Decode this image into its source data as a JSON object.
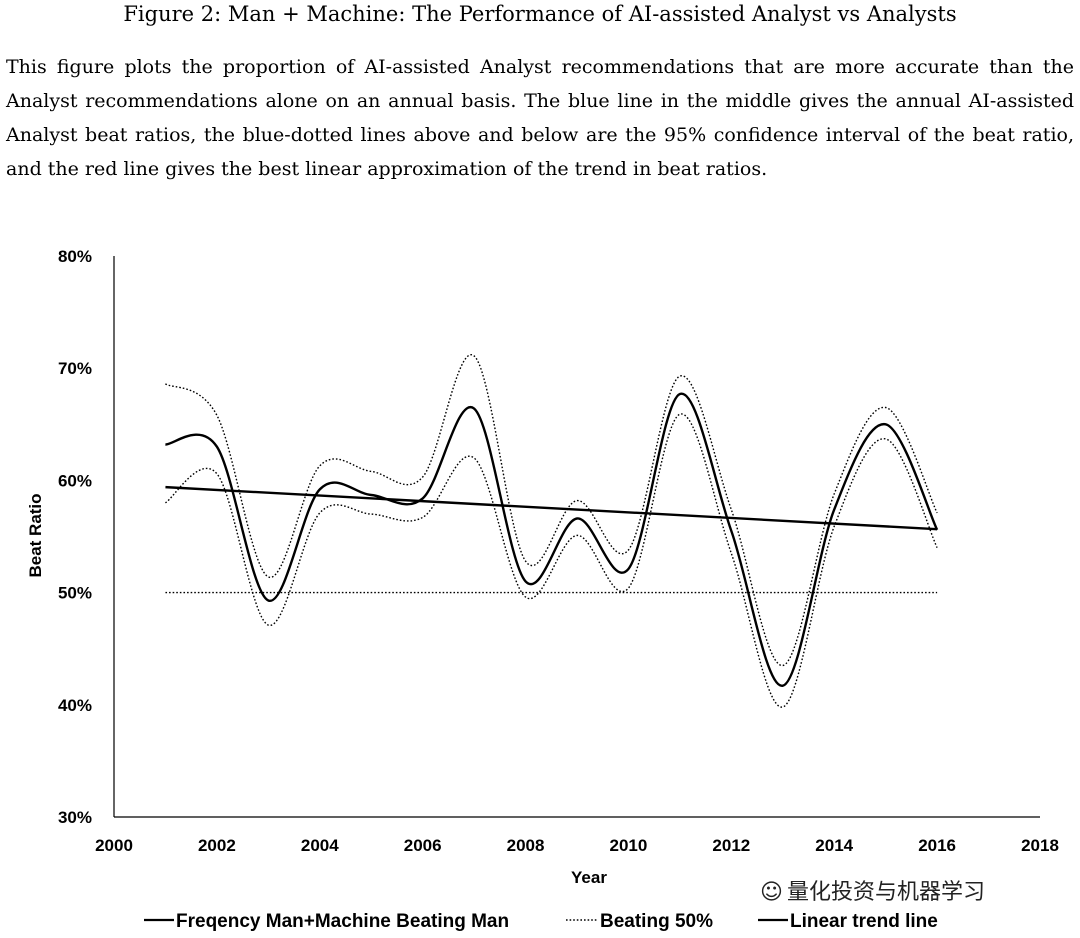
{
  "figure": {
    "title": "Figure 2: Man + Machine: The Performance of AI-assisted Analyst vs Analysts",
    "caption": "This figure plots the proportion of AI-assisted Analyst recommendations that are more accurate than the Analyst recommendations alone on an annual basis.  The blue line in the middle gives the annual AI-assisted Analyst beat ratios, the blue-dotted lines above and below are the 95% confidence interval of the beat ratio, and the red line gives the best linear approximation of the trend in beat ratios."
  },
  "watermark": {
    "text": "量化投资与机器学习",
    "icon": "wechat-icon"
  },
  "chart_data": {
    "type": "line",
    "xlabel": "Year",
    "ylabel": "Beat Ratio",
    "xlim": [
      2000,
      2018
    ],
    "ylim": [
      0.3,
      0.8
    ],
    "x_ticks": [
      2000,
      2002,
      2004,
      2006,
      2008,
      2010,
      2012,
      2014,
      2016,
      2018
    ],
    "y_ticks": [
      0.3,
      0.4,
      0.5,
      0.6,
      0.7,
      0.8
    ],
    "y_tick_labels": [
      "30%",
      "40%",
      "50%",
      "60%",
      "70%",
      "80%"
    ],
    "grid": false,
    "legend_position": "bottom",
    "x": [
      2001,
      2002,
      2003,
      2004,
      2005,
      2006,
      2007,
      2008,
      2009,
      2010,
      2011,
      2012,
      2013,
      2014,
      2015,
      2016
    ],
    "series": [
      {
        "name": "Freqency Man+Machine Beating Man",
        "style": "solid",
        "values": [
          0.632,
          0.63,
          0.493,
          0.592,
          0.587,
          0.584,
          0.664,
          0.51,
          0.566,
          0.521,
          0.677,
          0.555,
          0.417,
          0.574,
          0.65,
          0.556
        ]
      },
      {
        "name": "",
        "style": "dotted",
        "role": "upper-ci",
        "values": [
          0.686,
          0.658,
          0.514,
          0.613,
          0.608,
          0.603,
          0.711,
          0.528,
          0.582,
          0.538,
          0.693,
          0.574,
          0.435,
          0.588,
          0.665,
          0.571
        ]
      },
      {
        "name": "",
        "style": "dotted",
        "role": "lower-ci",
        "values": [
          0.58,
          0.606,
          0.471,
          0.571,
          0.57,
          0.567,
          0.62,
          0.496,
          0.551,
          0.504,
          0.659,
          0.535,
          0.398,
          0.559,
          0.637,
          0.54
        ]
      },
      {
        "name": "Beating 50%",
        "style": "dotted",
        "values": [
          0.5,
          0.5,
          0.5,
          0.5,
          0.5,
          0.5,
          0.5,
          0.5,
          0.5,
          0.5,
          0.5,
          0.5,
          0.5,
          0.5,
          0.5,
          0.5
        ]
      },
      {
        "name": "Linear trend line",
        "style": "solid",
        "values": [
          0.594,
          0.5915,
          0.589,
          0.5865,
          0.584,
          0.5815,
          0.579,
          0.5765,
          0.574,
          0.5715,
          0.569,
          0.5665,
          0.564,
          0.5615,
          0.559,
          0.5565
        ]
      }
    ]
  }
}
